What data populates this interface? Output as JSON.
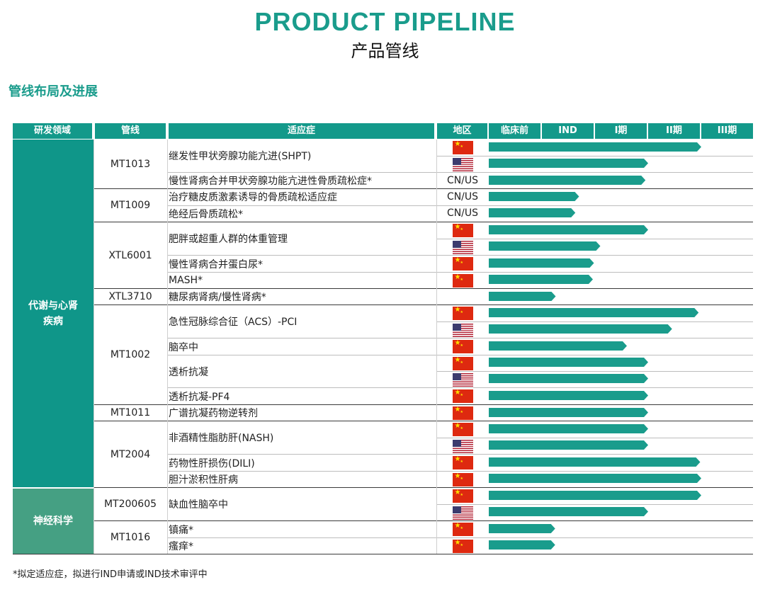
{
  "header": {
    "title_en": "PRODUCT PIPELINE",
    "title_cn": "产品管线",
    "section_title": "管线布局及进展"
  },
  "table": {
    "columns": [
      "研发领域",
      "管线",
      "适应症",
      "地区",
      "临床前",
      "IND",
      "I期",
      "II期",
      "III期"
    ],
    "areas": [
      "代谢与心肾\n疾病",
      "神经科学"
    ],
    "pipelines": [
      "MT1013",
      "MT1009",
      "XTL6001",
      "XTL3710",
      "MT1002",
      "MT1011",
      "MT2004",
      "MT200605",
      "MT1016"
    ],
    "indications": [
      "继发性甲状旁腺功能亢进(SHPT)",
      "慢性肾病合并甲状旁腺功能亢进性骨质疏松症*",
      "治疗糖皮质激素诱导的骨质疏松适应症",
      "绝经后骨质疏松*",
      "肥胖或超重人群的体重管理",
      "慢性肾病合并蛋白尿*",
      "MASH*",
      "糖尿病肾病/慢性肾病*",
      "急性冠脉综合征（ACS）-PCI",
      "脑卒中",
      "透析抗凝",
      "透析抗凝-PF4",
      "广谱抗凝药物逆转剂",
      "非酒精性脂肪肝(NASH)",
      "药物性肝损伤(DILI)",
      "胆汁淤积性肝病",
      "缺血性脑卒中",
      "镇痛*",
      "瘙痒*"
    ],
    "region_labels": [
      "CN/US",
      "CN/US",
      "CN/US"
    ],
    "stage_scale": [
      "临床前",
      "IND",
      "I期",
      "II期",
      "III期"
    ],
    "progress_bars": [
      {
        "region": "CN",
        "progress": 4.0
      },
      {
        "region": "US",
        "progress": 3.0
      },
      {
        "region": "CN/US",
        "progress": 2.95
      },
      {
        "region": "CN/US",
        "progress": 1.7
      },
      {
        "region": "CN/US",
        "progress": 1.63
      },
      {
        "region": "CN",
        "progress": 3.0
      },
      {
        "region": "US",
        "progress": 2.1
      },
      {
        "region": "CN",
        "progress": 1.98
      },
      {
        "region": "CN",
        "progress": 1.96
      },
      {
        "region": "",
        "progress": 1.26
      },
      {
        "region": "CN",
        "progress": 3.95
      },
      {
        "region": "US",
        "progress": 3.45
      },
      {
        "region": "CN",
        "progress": 2.6
      },
      {
        "region": "CN",
        "progress": 3.0
      },
      {
        "region": "US",
        "progress": 3.0
      },
      {
        "region": "CN",
        "progress": 3.0
      },
      {
        "region": "CN",
        "progress": 3.0
      },
      {
        "region": "CN",
        "progress": 3.0
      },
      {
        "region": "US",
        "progress": 3.0
      },
      {
        "region": "CN",
        "progress": 3.98
      },
      {
        "region": "CN",
        "progress": 4.0
      },
      {
        "region": "CN",
        "progress": 4.0
      },
      {
        "region": "US",
        "progress": 3.0
      },
      {
        "region": "CN",
        "progress": 1.25
      },
      {
        "region": "CN",
        "progress": 1.25
      }
    ],
    "colors": {
      "header": "#13998a",
      "bar": "#1a9c8c",
      "area_neuro": "#45a083",
      "flag_cn": "#de2910",
      "flag_us": "#3c3b6e"
    }
  },
  "footnote": "*拟定适应症，拟进行IND申请或IND技术审评中"
}
